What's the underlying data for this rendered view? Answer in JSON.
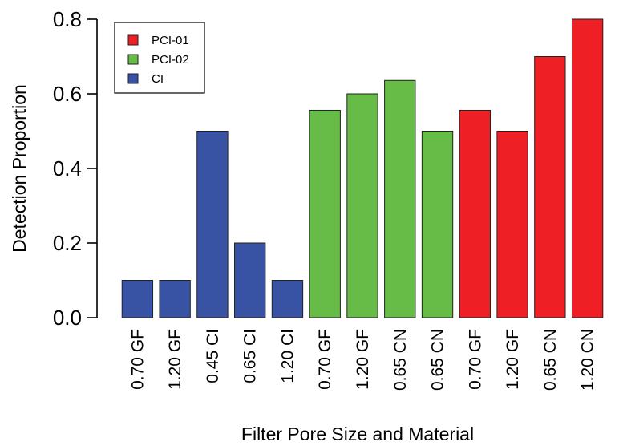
{
  "chart_data": {
    "type": "bar",
    "title": "",
    "xlabel": "Filter Pore Size and Material",
    "ylabel": "Detection Proportion",
    "ylim": [
      0,
      0.8
    ],
    "yticks": [
      "0.0",
      "0.2",
      "0.4",
      "0.6",
      "0.8"
    ],
    "ytick_values": [
      0,
      0.2,
      0.4,
      0.6,
      0.8
    ],
    "categories": [
      "0.70 GF",
      "1.20 GF",
      "0.45 CI",
      "0.65 CI",
      "1.20 CI",
      "0.70 GF",
      "1.20 GF",
      "0.65 CN",
      "0.65 CN",
      "0.70 GF",
      "1.20 GF",
      "0.65 CN",
      "1.20 CN"
    ],
    "values": [
      0.1,
      0.1,
      0.5,
      0.2,
      0.1,
      0.556,
      0.6,
      0.636,
      0.5,
      0.556,
      0.5,
      0.7,
      0.8
    ],
    "groups": [
      "CI",
      "CI",
      "CI",
      "CI",
      "CI",
      "PCI-02",
      "PCI-02",
      "PCI-02",
      "PCI-02",
      "PCI-01",
      "PCI-01",
      "PCI-01",
      "PCI-01"
    ],
    "legend": [
      {
        "name": "PCI-01",
        "color": "#ee1f25"
      },
      {
        "name": "PCI-02",
        "color": "#67bb47"
      },
      {
        "name": "CI",
        "color": "#3953a4"
      }
    ],
    "legend_position": "top-left",
    "grid": false
  }
}
